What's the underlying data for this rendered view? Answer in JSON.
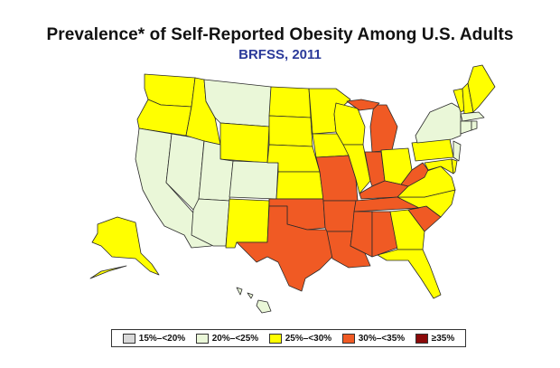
{
  "title": "Prevalence* of Self-Reported Obesity Among U.S. Adults",
  "subtitle": "BRFSS, 2011",
  "colors": {
    "c15_20": "#d9d9d9",
    "c20_25": "#eaf7d8",
    "c25_30": "#ffff00",
    "c30_35": "#f05a24",
    "c35": "#8b0a0a"
  },
  "legend": [
    {
      "label": "15%–<20%",
      "color": "#d9d9d9"
    },
    {
      "label": "20%–<25%",
      "color": "#eaf7d8"
    },
    {
      "label": "25%–<30%",
      "color": "#ffff00"
    },
    {
      "label": "30%–<35%",
      "color": "#f05a24"
    },
    {
      "label": "≥35%",
      "color": "#8b0a0a"
    }
  ]
}
